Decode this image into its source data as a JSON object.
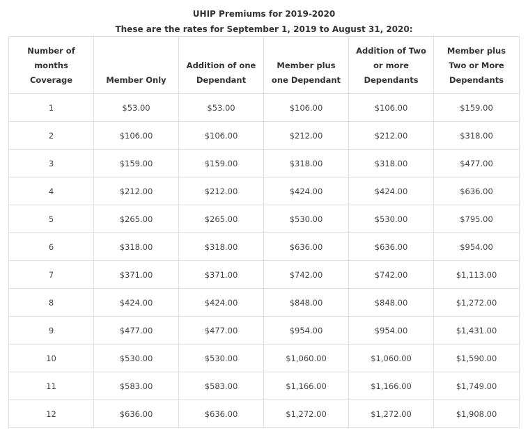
{
  "title": "UHIP Premiums for 2019-2020",
  "subtitle": "These are the rates for September 1, 2019 to August 31, 2020:",
  "table": {
    "headers": [
      [
        "Number of",
        "months",
        "Coverage"
      ],
      [
        "Member Only"
      ],
      [
        "Addition of one",
        "Dependant"
      ],
      [
        "Member plus",
        "one Dependant"
      ],
      [
        "Addition of Two",
        "or more",
        "Dependants"
      ],
      [
        "Member plus",
        "Two or More",
        "Dependants"
      ]
    ],
    "rows": [
      [
        "1",
        "$53.00",
        "$53.00",
        "$106.00",
        "$106.00",
        "$159.00"
      ],
      [
        "2",
        "$106.00",
        "$106.00",
        "$212.00",
        "$212.00",
        "$318.00"
      ],
      [
        "3",
        "$159.00",
        "$159.00",
        "$318.00",
        "$318.00",
        "$477.00"
      ],
      [
        "4",
        "$212.00",
        "$212.00",
        "$424.00",
        "$424.00",
        "$636.00"
      ],
      [
        "5",
        "$265.00",
        "$265.00",
        "$530.00",
        "$530.00",
        "$795.00"
      ],
      [
        "6",
        "$318.00",
        "$318.00",
        "$636.00",
        "$636.00",
        "$954.00"
      ],
      [
        "7",
        "$371.00",
        "$371.00",
        "$742.00",
        "$742.00",
        "$1,113.00"
      ],
      [
        "8",
        "$424.00",
        "$424.00",
        "$848.00",
        "$848.00",
        "$1,272.00"
      ],
      [
        "9",
        "$477.00",
        "$477.00",
        "$954.00",
        "$954.00",
        "$1,431.00"
      ],
      [
        "10",
        "$530.00",
        "$530.00",
        "$1,060.00",
        "$1,060.00",
        "$1,590.00"
      ],
      [
        "11",
        "$583.00",
        "$583.00",
        "$1,166.00",
        "$1,166.00",
        "$1,749.00"
      ],
      [
        "12",
        "$636.00",
        "$636.00",
        "$1,272.00",
        "$1,272.00",
        "$1,908.00"
      ]
    ]
  }
}
